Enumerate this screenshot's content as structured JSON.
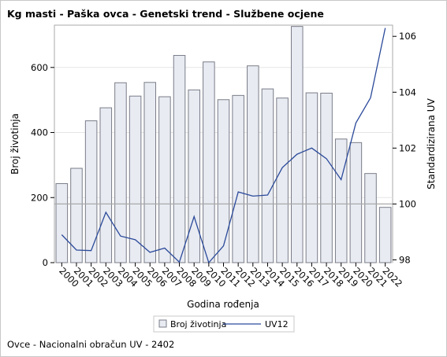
{
  "title": "Kg masti - Paška ovca - Genetski trend - Službene ocjene",
  "footnote": "Ovce - Nacionalni obračun UV - 2402",
  "colors": {
    "bar_fill": "#e8ebf2",
    "bar_stroke": "#7a7d88",
    "line": "#2b4a9a",
    "reference_line": "#a9a9a9",
    "grid": "#e6e6e6"
  },
  "chart_data": {
    "type": "bar",
    "categories": [
      "2000",
      "2001",
      "2002",
      "2003",
      "2004",
      "2005",
      "2006",
      "2007",
      "2008",
      "2009",
      "2010",
      "2011",
      "2012",
      "2013",
      "2014",
      "2015",
      "2016",
      "2017",
      "2018",
      "2019",
      "2020",
      "2021",
      "2022"
    ],
    "xlabel": "Godina rođenja",
    "ylabel": "Broj životinja",
    "y2label": "Standardizirana UV",
    "ylim": [
      0,
      730
    ],
    "y2lim": [
      97.9,
      106.4
    ],
    "yticks": [
      0,
      200,
      400,
      600
    ],
    "y2ticks": [
      98,
      100,
      102,
      104,
      106
    ],
    "reference_y2": 100,
    "grid": true,
    "legend_position": "bottom",
    "series": [
      {
        "name": "Broj životinja",
        "type": "bar",
        "axis": "left",
        "values": [
          243,
          290,
          436,
          476,
          553,
          512,
          554,
          510,
          637,
          531,
          617,
          501,
          514,
          605,
          534,
          506,
          726,
          522,
          521,
          380,
          369,
          274,
          170
        ]
      },
      {
        "name": "UV12",
        "type": "line",
        "axis": "right",
        "values": [
          98.9,
          98.35,
          98.33,
          99.7,
          98.85,
          98.72,
          98.27,
          98.42,
          97.92,
          99.55,
          97.9,
          98.5,
          100.43,
          100.28,
          100.32,
          101.3,
          101.78,
          102.0,
          101.62,
          100.87,
          102.9,
          103.8,
          106.3
        ]
      }
    ]
  }
}
